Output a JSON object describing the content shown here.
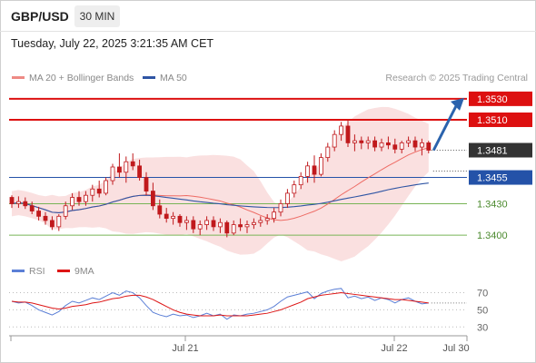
{
  "header": {
    "symbol": "GBP/USD",
    "timeframe": "30 MIN",
    "datetime": "Tuesday, July 22, 2025 3:21:35 AM CET"
  },
  "legend": {
    "ma20_label": "MA 20 + Bollinger Bands",
    "ma50_label": "MA 50",
    "rsi_label": "RSI",
    "rsi_ma_label": "9MA",
    "credit": "Research © 2025 Trading Central"
  },
  "colors": {
    "ma20": "#ee6b64",
    "bollinger_fill": "#f7cccc",
    "ma50": "#2f55a4",
    "resistance": "#dd1010",
    "pivot": "#2452a8",
    "support": "#78b456",
    "price_tag": "#333333",
    "candle": "#c0191c",
    "arrow": "#2b63ad",
    "rsi": "#5b7fd6",
    "rsi_ma": "#dd1515"
  },
  "chart_data": [
    {
      "type": "candlestick",
      "title": "GBP/USD 30 MIN",
      "ylim": [
        1.3388,
        1.3542
      ],
      "x_ticks": [
        "Jul 21",
        "Jul 22",
        "Jul 30"
      ],
      "last_price": 1.3481,
      "levels": [
        {
          "value": 1.353,
          "label": "1.3530",
          "kind": "resistance"
        },
        {
          "value": 1.351,
          "label": "1.3510",
          "kind": "resistance"
        },
        {
          "value": 1.3455,
          "label": "1.3455",
          "kind": "pivot"
        },
        {
          "value": 1.343,
          "label": "1.3430",
          "kind": "support"
        },
        {
          "value": 1.34,
          "label": "1.3400",
          "kind": "support"
        }
      ],
      "forecast_target": 1.353,
      "ohlc": [
        [
          1.3436,
          1.3438,
          1.3426,
          1.343
        ],
        [
          1.343,
          1.3437,
          1.3426,
          1.3432
        ],
        [
          1.3432,
          1.3436,
          1.3425,
          1.3428
        ],
        [
          1.3428,
          1.3432,
          1.342,
          1.3423
        ],
        [
          1.3423,
          1.3427,
          1.3414,
          1.3418
        ],
        [
          1.3418,
          1.3422,
          1.341,
          1.3414
        ],
        [
          1.3414,
          1.3418,
          1.3405,
          1.3408
        ],
        [
          1.3408,
          1.342,
          1.3404,
          1.3418
        ],
        [
          1.3418,
          1.3432,
          1.3415,
          1.3428
        ],
        [
          1.3428,
          1.344,
          1.3424,
          1.3436
        ],
        [
          1.3436,
          1.3442,
          1.3428,
          1.3432
        ],
        [
          1.3432,
          1.3442,
          1.3428,
          1.3438
        ],
        [
          1.3438,
          1.3448,
          1.3432,
          1.3444
        ],
        [
          1.3444,
          1.3452,
          1.3436,
          1.344
        ],
        [
          1.344,
          1.3455,
          1.3438,
          1.3452
        ],
        [
          1.3452,
          1.3468,
          1.3448,
          1.3465
        ],
        [
          1.3465,
          1.3478,
          1.3455,
          1.346
        ],
        [
          1.346,
          1.3475,
          1.345,
          1.347
        ],
        [
          1.347,
          1.3478,
          1.3462,
          1.3466
        ],
        [
          1.3466,
          1.3472,
          1.3452,
          1.3455
        ],
        [
          1.3455,
          1.346,
          1.3438,
          1.3442
        ],
        [
          1.3442,
          1.345,
          1.3424,
          1.3428
        ],
        [
          1.3428,
          1.3434,
          1.3416,
          1.342
        ],
        [
          1.342,
          1.3426,
          1.3412,
          1.3416
        ],
        [
          1.3416,
          1.3422,
          1.341,
          1.3418
        ],
        [
          1.3418,
          1.342,
          1.3408,
          1.3412
        ],
        [
          1.3412,
          1.3418,
          1.3405,
          1.3414
        ],
        [
          1.3414,
          1.3418,
          1.3402,
          1.3406
        ],
        [
          1.3406,
          1.3414,
          1.34,
          1.341
        ],
        [
          1.341,
          1.3418,
          1.3405,
          1.3414
        ],
        [
          1.3414,
          1.3418,
          1.3404,
          1.3408
        ],
        [
          1.3408,
          1.3416,
          1.3402,
          1.3412
        ],
        [
          1.3412,
          1.3414,
          1.3398,
          1.3402
        ],
        [
          1.3402,
          1.3414,
          1.34,
          1.341
        ],
        [
          1.341,
          1.3416,
          1.3404,
          1.3408
        ],
        [
          1.3408,
          1.3414,
          1.3402,
          1.341
        ],
        [
          1.341,
          1.3416,
          1.3406,
          1.3412
        ],
        [
          1.3412,
          1.3418,
          1.3408,
          1.3414
        ],
        [
          1.3414,
          1.342,
          1.341,
          1.3416
        ],
        [
          1.3416,
          1.3426,
          1.3412,
          1.3422
        ],
        [
          1.3422,
          1.3434,
          1.3418,
          1.343
        ],
        [
          1.343,
          1.3444,
          1.3426,
          1.344
        ],
        [
          1.344,
          1.3452,
          1.3436,
          1.3448
        ],
        [
          1.3448,
          1.346,
          1.3444,
          1.3456
        ],
        [
          1.3456,
          1.347,
          1.345,
          1.3466
        ],
        [
          1.3466,
          1.3476,
          1.345,
          1.3458
        ],
        [
          1.3458,
          1.3478,
          1.3456,
          1.3474
        ],
        [
          1.3474,
          1.3488,
          1.347,
          1.3484
        ],
        [
          1.3484,
          1.35,
          1.348,
          1.3496
        ],
        [
          1.3496,
          1.3508,
          1.349,
          1.3504
        ],
        [
          1.3504,
          1.351,
          1.3484,
          1.3488
        ],
        [
          1.3488,
          1.3496,
          1.348,
          1.349
        ],
        [
          1.349,
          1.3494,
          1.3482,
          1.3488
        ],
        [
          1.3488,
          1.3494,
          1.3482,
          1.349
        ],
        [
          1.349,
          1.3494,
          1.348,
          1.3484
        ],
        [
          1.3484,
          1.3492,
          1.348,
          1.3488
        ],
        [
          1.3488,
          1.3494,
          1.3482,
          1.3486
        ],
        [
          1.3486,
          1.3492,
          1.3478,
          1.3482
        ],
        [
          1.3482,
          1.349,
          1.3478,
          1.3488
        ],
        [
          1.3488,
          1.3494,
          1.3484,
          1.349
        ],
        [
          1.349,
          1.3494,
          1.348,
          1.3484
        ],
        [
          1.3484,
          1.3492,
          1.3476,
          1.3488
        ],
        [
          1.3488,
          1.349,
          1.3478,
          1.3481
        ]
      ]
    },
    {
      "type": "line",
      "title": "RSI",
      "ylim": [
        25,
        78
      ],
      "y_ticks": [
        30,
        50,
        70
      ],
      "series": [
        {
          "name": "RSI",
          "values": [
            60,
            58,
            59,
            55,
            50,
            47,
            44,
            48,
            55,
            60,
            58,
            61,
            64,
            62,
            66,
            70,
            67,
            72,
            70,
            64,
            55,
            47,
            44,
            42,
            45,
            43,
            44,
            41,
            43,
            46,
            43,
            45,
            39,
            44,
            43,
            45,
            46,
            48,
            50,
            54,
            60,
            65,
            67,
            69,
            71,
            63,
            69,
            72,
            74,
            75,
            64,
            66,
            63,
            65,
            61,
            64,
            62,
            58,
            62,
            64,
            60,
            57,
            58
          ]
        },
        {
          "name": "9MA",
          "values": [
            60,
            59,
            59,
            58,
            56,
            54,
            52,
            51,
            52,
            54,
            55,
            56,
            58,
            59,
            61,
            63,
            64,
            66,
            67,
            67,
            65,
            62,
            58,
            54,
            50,
            47,
            45,
            44,
            43,
            43,
            43,
            44,
            43,
            43,
            43,
            43,
            44,
            45,
            46,
            48,
            50,
            53,
            56,
            59,
            63,
            65,
            67,
            68,
            69,
            70,
            69,
            68,
            67,
            66,
            65,
            64,
            63,
            62,
            62,
            61,
            60,
            59,
            58
          ]
        }
      ]
    }
  ]
}
